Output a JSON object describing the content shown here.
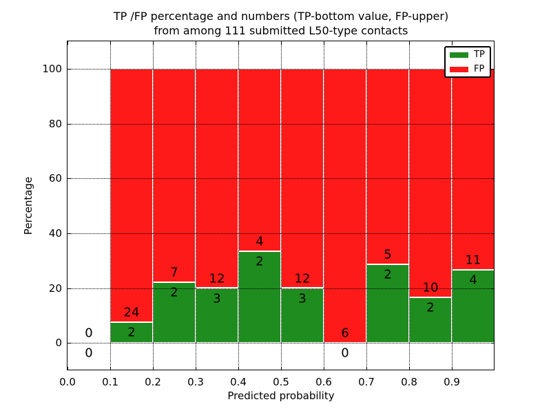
{
  "chart_data": {
    "type": "bar",
    "stacked": true,
    "title": "TP /FP percentage and numbers (TP-bottom value, FP-upper)\nfrom among 111 submitted L50-type contacts",
    "title_lines": [
      "TP /FP percentage and numbers (TP-bottom value, FP-upper)",
      "from among 111 submitted L50-type contacts"
    ],
    "xlabel": "Predicted probability",
    "ylabel": "Percentage",
    "xlim": [
      0.0,
      1.0
    ],
    "ylim": [
      -10,
      110
    ],
    "xticks": [
      "0.0",
      "0.1",
      "0.2",
      "0.3",
      "0.4",
      "0.5",
      "0.6",
      "0.7",
      "0.8",
      "0.9"
    ],
    "yticks": [
      "0",
      "20",
      "40",
      "60",
      "80",
      "100"
    ],
    "grid": "dotted",
    "total_contacts": 111,
    "colors": {
      "tp": "#1e8c1e",
      "fp": "#ff1a1a"
    },
    "legend": {
      "position": "upper right",
      "entries": [
        {
          "label": "TP",
          "color": "#1e8c1e"
        },
        {
          "label": "FP",
          "color": "#ff1a1a"
        }
      ]
    },
    "bins": [
      {
        "x0": 0.0,
        "x1": 0.1,
        "tp_count": 0,
        "fp_count": 0,
        "tp_pct": 0.0,
        "fp_pct": 0.0
      },
      {
        "x0": 0.1,
        "x1": 0.2,
        "tp_count": 2,
        "fp_count": 24,
        "tp_pct": 7.69,
        "fp_pct": 92.31
      },
      {
        "x0": 0.2,
        "x1": 0.3,
        "tp_count": 2,
        "fp_count": 7,
        "tp_pct": 22.22,
        "fp_pct": 77.78
      },
      {
        "x0": 0.3,
        "x1": 0.4,
        "tp_count": 3,
        "fp_count": 12,
        "tp_pct": 20.0,
        "fp_pct": 80.0
      },
      {
        "x0": 0.4,
        "x1": 0.5,
        "tp_count": 2,
        "fp_count": 4,
        "tp_pct": 33.33,
        "fp_pct": 66.67
      },
      {
        "x0": 0.5,
        "x1": 0.6,
        "tp_count": 3,
        "fp_count": 12,
        "tp_pct": 20.0,
        "fp_pct": 80.0
      },
      {
        "x0": 0.6,
        "x1": 0.7,
        "tp_count": 0,
        "fp_count": 6,
        "tp_pct": 0.0,
        "fp_pct": 100.0
      },
      {
        "x0": 0.7,
        "x1": 0.8,
        "tp_count": 2,
        "fp_count": 5,
        "tp_pct": 28.57,
        "fp_pct": 71.43
      },
      {
        "x0": 0.8,
        "x1": 0.9,
        "tp_count": 2,
        "fp_count": 10,
        "tp_pct": 16.67,
        "fp_pct": 83.33
      },
      {
        "x0": 0.9,
        "x1": 1.0,
        "tp_count": 4,
        "fp_count": 11,
        "tp_pct": 26.67,
        "fp_pct": 73.33
      }
    ]
  }
}
